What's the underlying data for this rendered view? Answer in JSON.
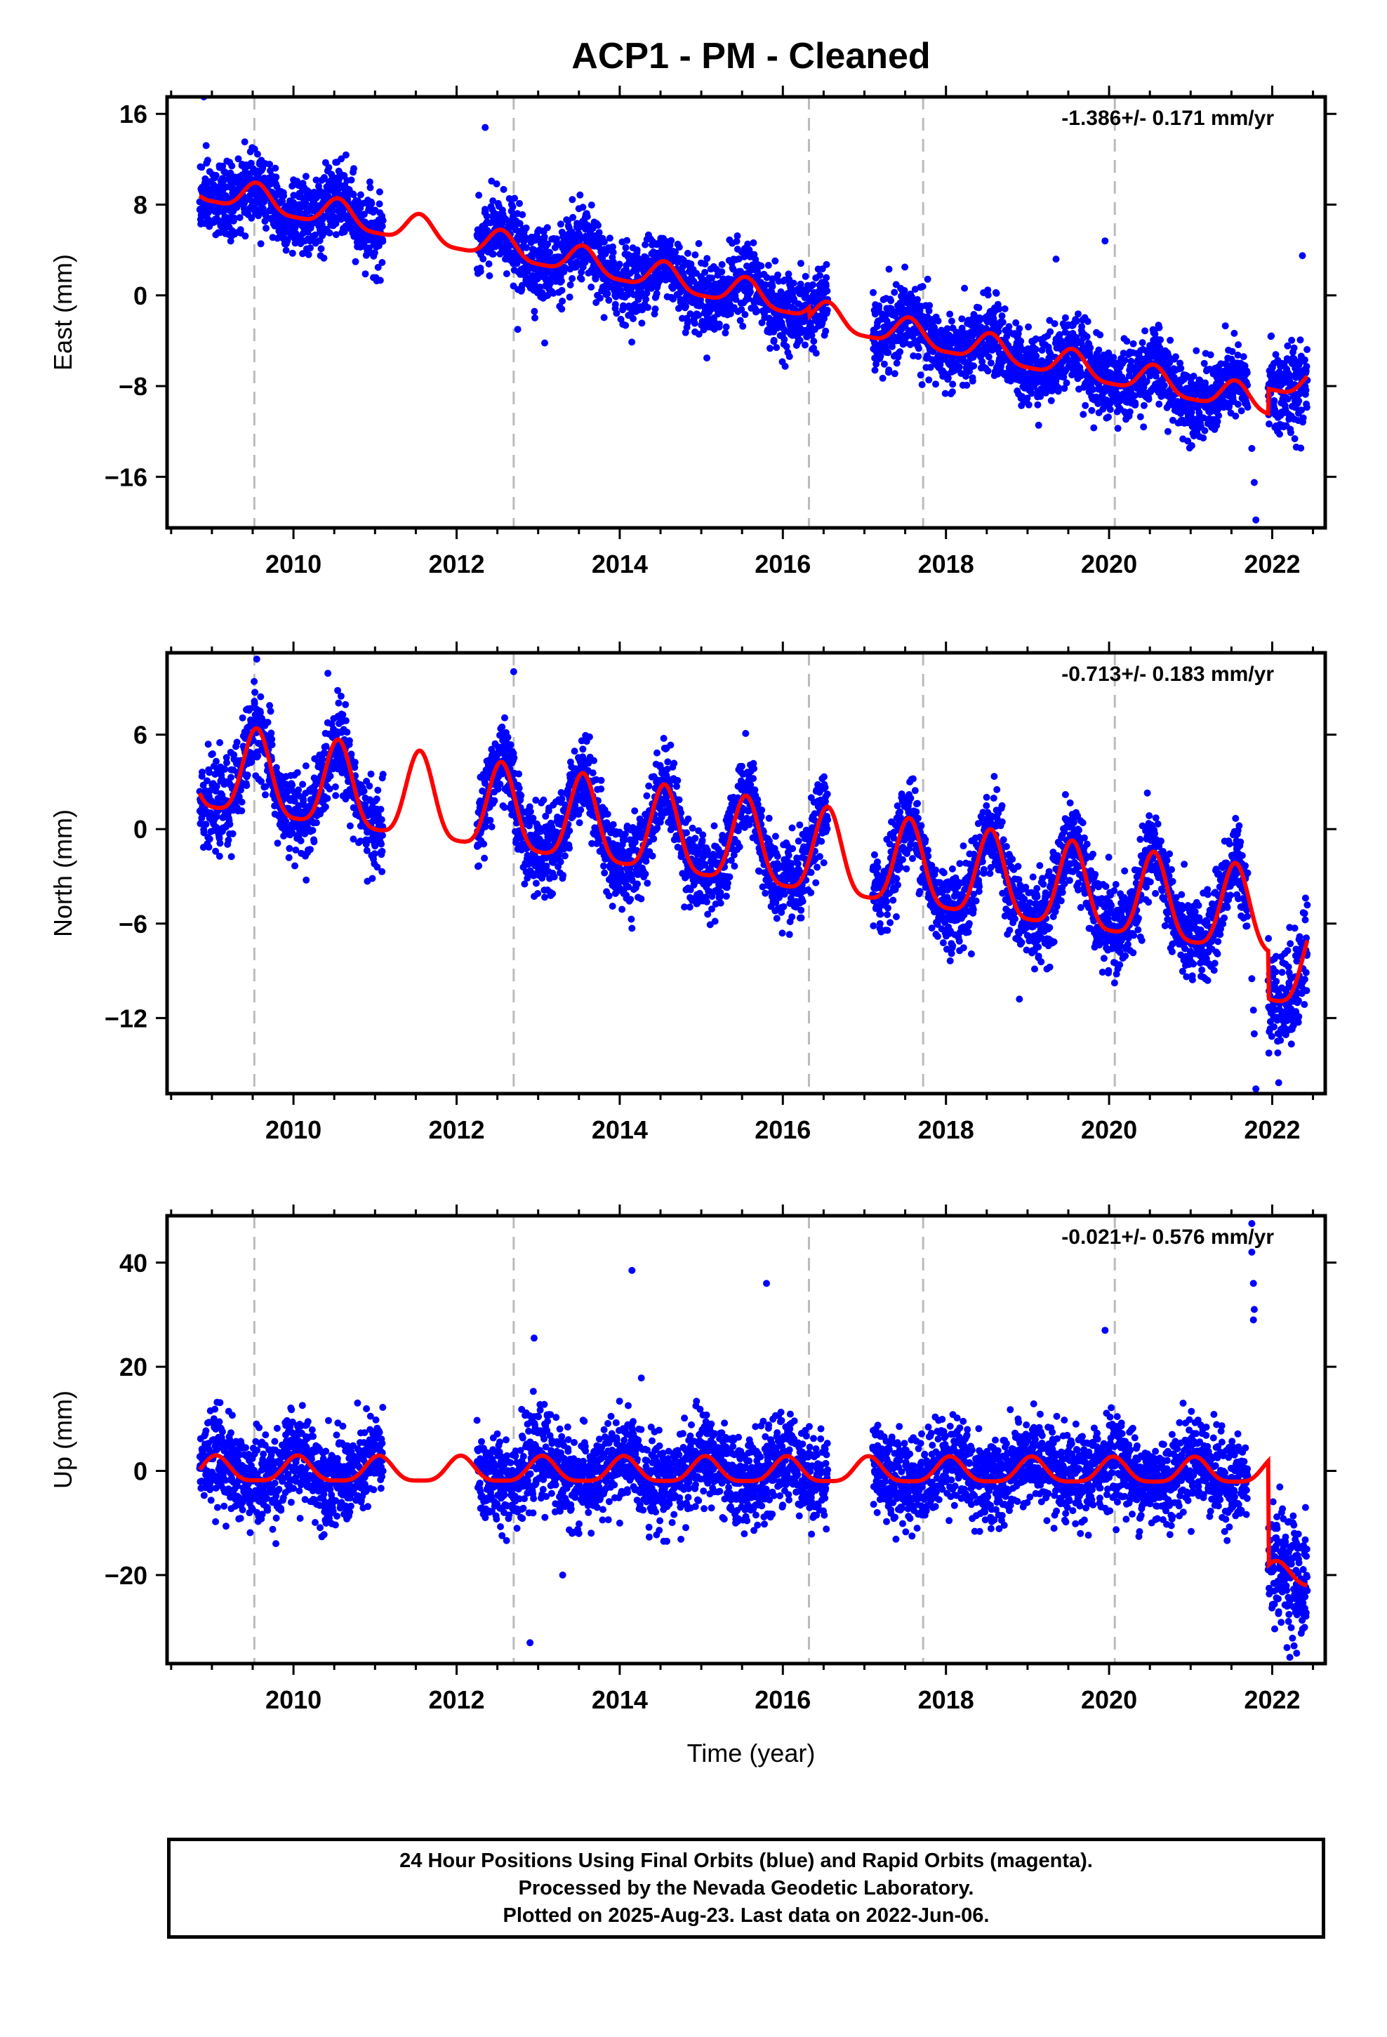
{
  "chart_data": {
    "type": "scatter",
    "title": "ACP1  - PM - Cleaned",
    "xlabel": "Time (year)",
    "xlim": [
      2008.45,
      2022.65
    ],
    "x_ticks": [
      2010,
      2012,
      2014,
      2016,
      2018,
      2020,
      2022
    ],
    "x_tick_labels": [
      "2010",
      "2012",
      "2014",
      "2016",
      "2018",
      "2020",
      "2022"
    ],
    "equipment_change_epochs": [
      2009.52,
      2012.7,
      2016.32,
      2017.72,
      2020.07
    ],
    "data_span": [
      2008.85,
      2022.43
    ],
    "gaps": [
      [
        2011.1,
        2012.25
      ],
      [
        2016.55,
        2017.1
      ],
      [
        2021.7,
        2021.95
      ]
    ],
    "series_colors": {
      "points": "#0000ff",
      "model": "#ff0000",
      "breaks": "#bbbbbb"
    },
    "panels": [
      {
        "id": "east",
        "ylabel": "East (mm)",
        "ylim": [
          -20.5,
          17.5
        ],
        "y_ticks": [
          -16,
          -8,
          0,
          8,
          16
        ],
        "y_tick_labels": [
          "−16",
          "−8",
          "0",
          "8",
          "16"
        ],
        "rate_text": "-1.386+/- 0.171 mm/yr",
        "trend_at_2009": 9.2,
        "velocity": -1.386,
        "annual_amplitude": 1.2,
        "annual_phase_peak": 0.55,
        "semiannual_amplitude": 0.3,
        "scatter_sd": 1.6,
        "offsets": [
          [
            2016.32,
            -0.8
          ],
          [
            2021.95,
            2.2
          ]
        ],
        "outliers": [
          [
            2008.9,
            17.5
          ],
          [
            2012.35,
            14.8
          ],
          [
            2019.35,
            3.2
          ],
          [
            2019.95,
            4.8
          ],
          [
            2021.75,
            -13.5
          ],
          [
            2021.78,
            -16.5
          ],
          [
            2021.8,
            -19.8
          ],
          [
            2022.37,
            3.5
          ],
          [
            2013.08,
            -4.2
          ],
          [
            2012.75,
            -3.0
          ]
        ]
      },
      {
        "id": "north",
        "ylabel": "North (mm)",
        "ylim": [
          -16.8,
          11.2
        ],
        "y_ticks": [
          -12,
          -6,
          0,
          6
        ],
        "y_tick_labels": [
          "−12",
          "−6",
          "0",
          "6"
        ],
        "rate_text": "-0.713+/- 0.183 mm/yr",
        "trend_at_2009": 3.5,
        "velocity": -0.713,
        "annual_amplitude": 2.7,
        "annual_phase_peak": 0.55,
        "semiannual_amplitude": 0.6,
        "scatter_sd": 1.3,
        "offsets": [
          [
            2021.95,
            -3.0
          ]
        ],
        "outliers": [
          [
            2009.55,
            10.8
          ],
          [
            2012.7,
            10.0
          ],
          [
            2014.15,
            -6.3
          ],
          [
            2018.9,
            -10.8
          ],
          [
            2021.75,
            -9.5
          ],
          [
            2021.78,
            -13.0
          ],
          [
            2021.8,
            -16.5
          ],
          [
            2021.77,
            -11.5
          ]
        ]
      },
      {
        "id": "up",
        "ylabel": "Up (mm)",
        "ylim": [
          -37,
          49
        ],
        "y_ticks": [
          -20,
          0,
          20,
          40
        ],
        "y_tick_labels": [
          "−20",
          "0",
          "20",
          "40"
        ],
        "rate_text": "-0.021+/- 0.576 mm/yr",
        "trend_at_2009": 0.0,
        "velocity": -0.021,
        "annual_amplitude": 2.4,
        "annual_phase_peak": 0.05,
        "semiannual_amplitude": 0.6,
        "scatter_sd": 4.2,
        "offsets": [
          [
            2021.95,
            -20.0
          ]
        ],
        "outliers": [
          [
            2014.15,
            38.5
          ],
          [
            2015.8,
            36.0
          ],
          [
            2012.95,
            25.5
          ],
          [
            2012.9,
            -33.0
          ],
          [
            2019.95,
            27.0
          ],
          [
            2021.75,
            47.5
          ],
          [
            2021.75,
            42.0
          ],
          [
            2021.77,
            36.0
          ],
          [
            2021.78,
            31.0
          ],
          [
            2021.77,
            29.0
          ],
          [
            2022.3,
            -35.0
          ],
          [
            2013.3,
            -20.0
          ]
        ]
      }
    ]
  },
  "footer": {
    "line1": "24 Hour Positions Using Final Orbits (blue) and Rapid Orbits (magenta).",
    "line2": "Processed by the Nevada Geodetic Laboratory.",
    "line3": "Plotted on 2025-Aug-23. Last data on 2022-Jun-06."
  }
}
